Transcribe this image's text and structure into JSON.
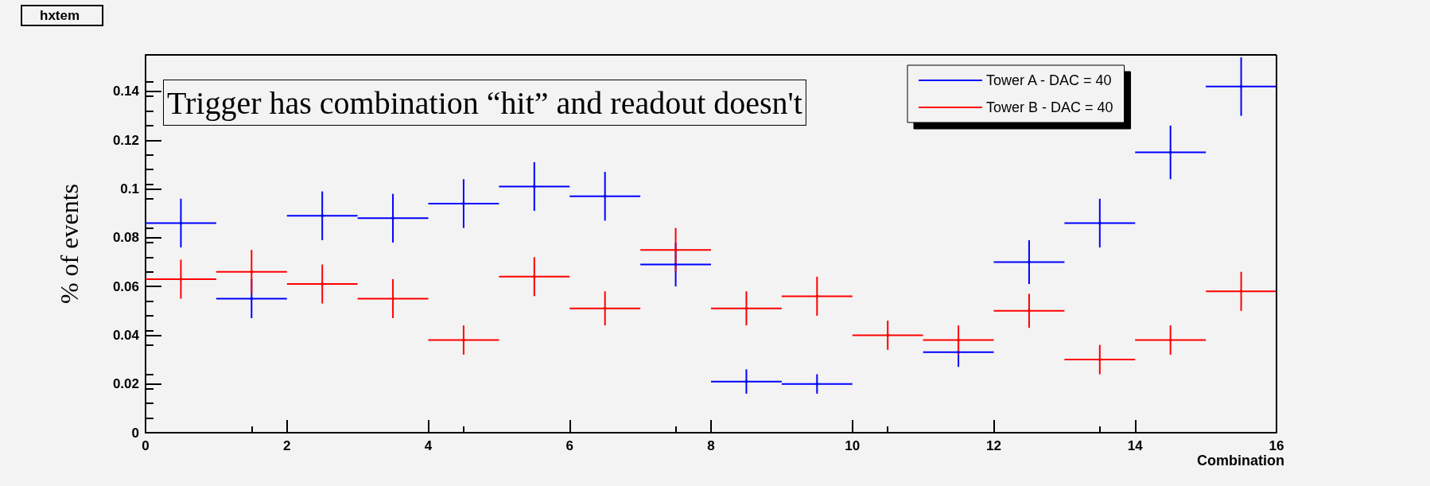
{
  "chart_data": {
    "type": "scatter",
    "xlabel": "Combination",
    "ylabel": "% of events",
    "annotations": [
      "hxtem",
      "Trigger has combination “hit” and readout doesn't"
    ],
    "x": [
      0.5,
      1.5,
      2.5,
      3.5,
      4.5,
      5.5,
      6.5,
      7.5,
      8.5,
      9.5,
      10.5,
      11.5,
      12.5,
      13.5,
      14.5,
      15.5
    ],
    "series": [
      {
        "name": "Tower A - DAC = 40",
        "color": "#0000ff",
        "values": [
          0.086,
          0.055,
          0.089,
          0.088,
          0.094,
          0.101,
          0.097,
          0.069,
          0.021,
          0.02,
          null,
          0.033,
          0.07,
          0.086,
          0.115,
          0.142
        ],
        "errors": [
          0.01,
          0.008,
          0.01,
          0.01,
          0.01,
          0.01,
          0.01,
          0.009,
          0.005,
          0.004,
          null,
          0.006,
          0.009,
          0.01,
          0.011,
          0.012
        ],
        "xerrors": [
          0.5,
          0.5,
          0.5,
          0.5,
          0.5,
          0.5,
          0.5,
          0.5,
          0.5,
          0.5,
          null,
          0.5,
          0.5,
          0.5,
          0.5,
          0.5
        ]
      },
      {
        "name": "Tower B - DAC = 40",
        "color": "#ff0000",
        "values": [
          0.063,
          0.066,
          0.061,
          0.055,
          0.038,
          0.064,
          0.051,
          0.075,
          0.051,
          0.056,
          0.04,
          0.038,
          0.05,
          0.03,
          0.038,
          0.058
        ],
        "errors": [
          0.008,
          0.009,
          0.008,
          0.008,
          0.006,
          0.008,
          0.007,
          0.009,
          0.007,
          0.008,
          0.006,
          0.006,
          0.007,
          0.006,
          0.006,
          0.008
        ],
        "xerrors": [
          0.5,
          0.5,
          0.5,
          0.5,
          0.5,
          0.5,
          0.5,
          0.5,
          0.5,
          0.5,
          0.5,
          0.5,
          0.5,
          0.5,
          0.5,
          0.5
        ]
      }
    ],
    "xlim": [
      0,
      16
    ],
    "xticks": [
      0,
      2,
      4,
      6,
      8,
      10,
      12,
      14,
      16
    ],
    "ylim": [
      0,
      0.155
    ],
    "yticks": [
      0,
      0.02,
      0.04,
      0.06,
      0.08,
      0.1,
      0.12,
      0.14
    ],
    "grid": false,
    "legend": "top right"
  }
}
